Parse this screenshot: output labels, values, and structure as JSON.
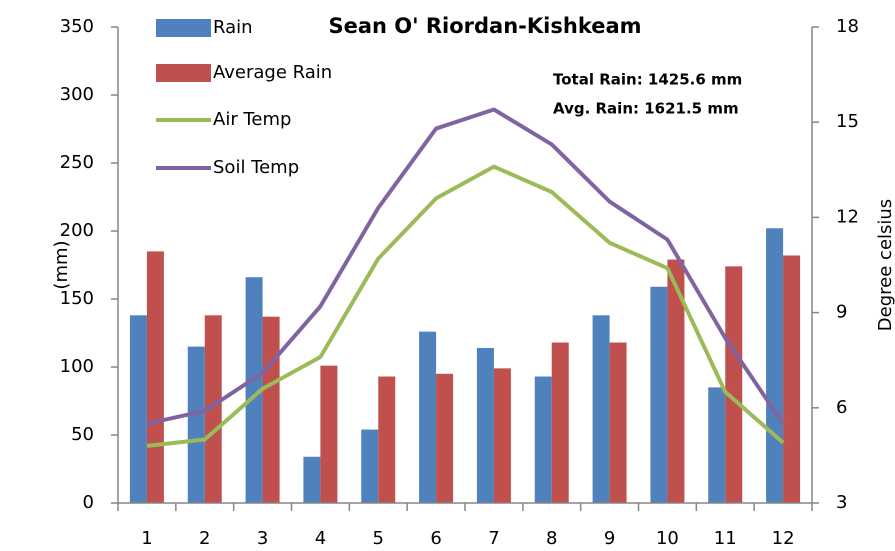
{
  "chart_data": {
    "type": "bar-line",
    "title": "Sean O' Riordan-Kishkeam",
    "annotations": [
      "Total Rain: 1425.6 mm",
      "Avg. Rain:  1621.5 mm"
    ],
    "ylabel": "(mm)",
    "y2label": "Degree celsius",
    "categories": [
      1,
      2,
      3,
      4,
      5,
      6,
      7,
      8,
      9,
      10,
      11,
      12
    ],
    "series": [
      {
        "name": "Rain",
        "type": "bar",
        "color": "#4f81bd",
        "values": [
          138,
          115,
          166,
          34,
          54,
          126,
          114,
          93,
          138,
          159,
          85,
          202
        ]
      },
      {
        "name": "Average Rain",
        "type": "bar",
        "color": "#c0504d",
        "values": [
          185,
          138,
          137,
          101,
          93,
          95,
          99,
          118,
          118,
          179,
          174,
          182
        ]
      },
      {
        "name": "Air Temp",
        "type": "line",
        "axis": "y2",
        "color": "#9bbb59",
        "values": [
          4.8,
          5.0,
          6.6,
          7.6,
          10.7,
          12.6,
          13.6,
          12.8,
          11.2,
          10.4,
          6.5,
          4.9
        ]
      },
      {
        "name": "Soil Temp",
        "type": "line",
        "axis": "y2",
        "color": "#8064a2",
        "values": [
          5.5,
          5.9,
          7.1,
          9.2,
          12.3,
          14.8,
          15.4,
          14.3,
          12.5,
          11.3,
          8.2,
          5.5
        ]
      }
    ],
    "ylim": [
      0,
      350
    ],
    "yticks": [
      0,
      50,
      100,
      150,
      200,
      250,
      300,
      350
    ],
    "y2lim": [
      3,
      18
    ],
    "y2ticks": [
      3,
      6,
      9,
      12,
      15,
      18
    ],
    "legend": "top-left"
  }
}
